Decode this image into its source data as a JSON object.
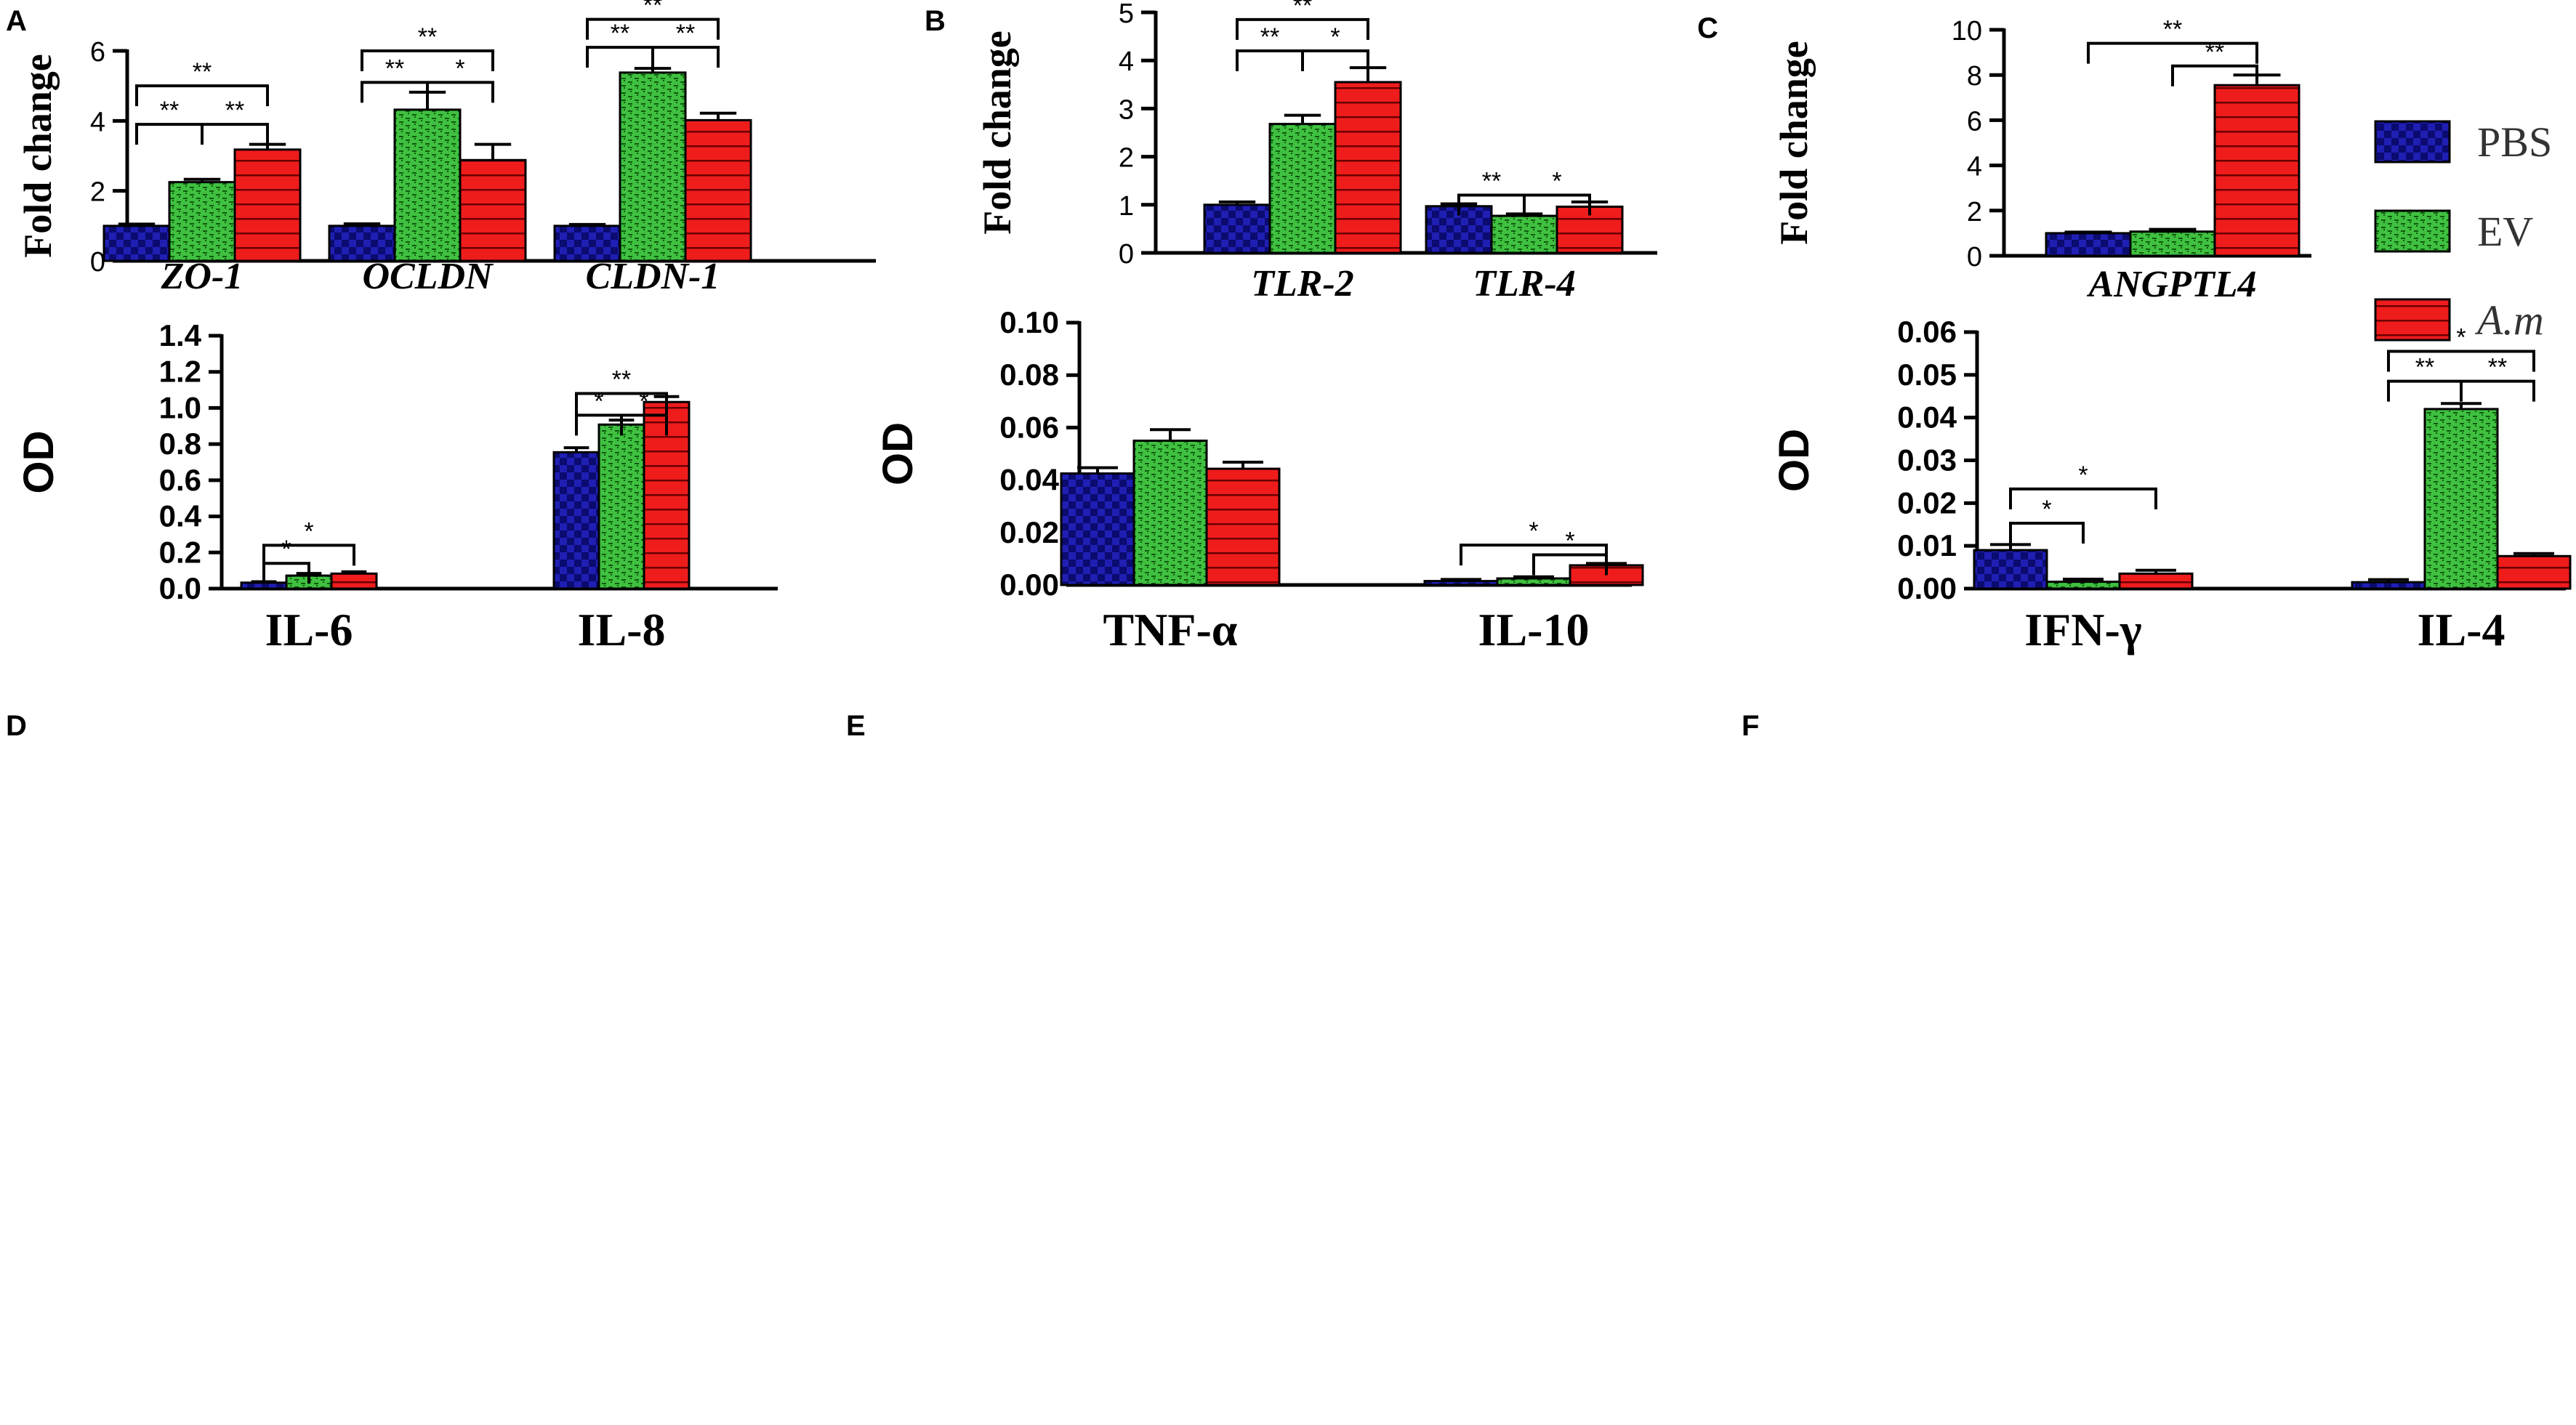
{
  "figure": {
    "legend": [
      {
        "name": "PBS",
        "italic": false
      },
      {
        "name": "EV",
        "italic": false
      },
      {
        "name": "A.m",
        "italic": true
      }
    ],
    "colors": {
      "PBS": "#1f1fb4",
      "PBS_dark": "#0b0b70",
      "EV": "#40c040",
      "EV_dark": "#0d5a0d",
      "A.m": "#ef1c1c",
      "A.m_dark": "#6a0000"
    }
  },
  "chart_data": [
    {
      "panel": "A",
      "type": "bar",
      "ylabel": "Fold change",
      "ylim": [
        0,
        6
      ],
      "yticks": [
        "0",
        "2",
        "4",
        "6"
      ],
      "ytick_values": [
        0,
        2,
        4,
        6
      ],
      "categories": [
        "ZO-1",
        "OCLDN",
        "CLDN-1"
      ],
      "category_style": "italic",
      "series": [
        {
          "name": "PBS",
          "values": [
            1.0,
            1.0,
            1.0
          ],
          "errors": [
            0.05,
            0.06,
            0.04
          ]
        },
        {
          "name": "EV",
          "values": [
            2.25,
            4.32,
            5.38
          ],
          "errors": [
            0.08,
            0.5,
            0.12
          ]
        },
        {
          "name": "A.m",
          "values": [
            3.18,
            2.88,
            4.02
          ],
          "errors": [
            0.15,
            0.45,
            0.2
          ]
        }
      ],
      "significance": [
        {
          "type": "simple",
          "cat": 0,
          "from": 0,
          "to": 2,
          "level": 5.0,
          "label": "**"
        },
        {
          "type": "split",
          "cat": 0,
          "from": 0,
          "mid": 1,
          "to": 2,
          "level": 3.9,
          "labels": [
            "**",
            "**"
          ]
        },
        {
          "type": "simple",
          "cat": 1,
          "from": 0,
          "to": 2,
          "level": 6.0,
          "label": "**"
        },
        {
          "type": "split",
          "cat": 1,
          "from": 0,
          "mid": 1,
          "to": 2,
          "level": 5.1,
          "labels": [
            "**",
            "*"
          ]
        },
        {
          "type": "simple",
          "cat": 2,
          "from": 0,
          "to": 2,
          "level": 6.9,
          "label": "**"
        },
        {
          "type": "split",
          "cat": 2,
          "from": 0,
          "mid": 1,
          "to": 2,
          "level": 6.1,
          "labels": [
            "**",
            "**"
          ]
        }
      ]
    },
    {
      "panel": "B",
      "type": "bar",
      "ylabel": "Fold change",
      "ylim": [
        0,
        5
      ],
      "yticks": [
        "0",
        "1",
        "2",
        "3",
        "4",
        "5"
      ],
      "ytick_values": [
        0,
        1,
        2,
        3,
        4,
        5
      ],
      "categories": [
        "TLR-2",
        "TLR-4"
      ],
      "category_style": "italic",
      "series": [
        {
          "name": "PBS",
          "values": [
            1.0,
            0.97
          ],
          "errors": [
            0.06,
            0.05
          ]
        },
        {
          "name": "EV",
          "values": [
            2.68,
            0.77
          ],
          "errors": [
            0.18,
            0.04
          ]
        },
        {
          "name": "A.m",
          "values": [
            3.55,
            0.96
          ],
          "errors": [
            0.3,
            0.1
          ]
        }
      ],
      "significance": [
        {
          "type": "simple",
          "cat": 0,
          "from": 0,
          "to": 2,
          "level": 4.85,
          "label": "**"
        },
        {
          "type": "split",
          "cat": 0,
          "from": 0,
          "mid": 1,
          "to": 2,
          "level": 4.2,
          "labels": [
            "**",
            "*"
          ]
        },
        {
          "type": "split",
          "cat": 1,
          "from": 0,
          "mid": 1,
          "to": 2,
          "level": 1.2,
          "labels": [
            "**",
            "*"
          ]
        }
      ]
    },
    {
      "panel": "C",
      "type": "bar",
      "ylabel": "Fold change",
      "ylim": [
        0,
        10
      ],
      "yticks": [
        "0",
        "2",
        "4",
        "6",
        "8",
        "10"
      ],
      "ytick_values": [
        0,
        2,
        4,
        6,
        8,
        10
      ],
      "categories": [
        "ANGPTL4"
      ],
      "category_style": "italic",
      "series": [
        {
          "name": "PBS",
          "values": [
            1.0
          ],
          "errors": [
            0.05
          ]
        },
        {
          "name": "EV",
          "values": [
            1.07
          ],
          "errors": [
            0.1
          ]
        },
        {
          "name": "A.m",
          "values": [
            7.55
          ],
          "errors": [
            0.45
          ]
        }
      ],
      "significance": [
        {
          "type": "simple",
          "cat": 0,
          "from": 0,
          "to": 2,
          "level": 9.4,
          "label": "**"
        },
        {
          "type": "simple",
          "cat": 0,
          "from": 1,
          "to": 2,
          "level": 8.4,
          "label": "**"
        }
      ]
    },
    {
      "panel": "D",
      "type": "bar",
      "ylabel": "OD",
      "ylim": [
        0,
        1.4
      ],
      "yticks": [
        "0.0",
        "0.2",
        "0.4",
        "0.6",
        "0.8",
        "1.0",
        "1.2",
        "1.4"
      ],
      "ytick_values": [
        0,
        0.2,
        0.4,
        0.6,
        0.8,
        1.0,
        1.2,
        1.4
      ],
      "categories": [
        "IL-6",
        "IL-8"
      ],
      "category_style": "plain",
      "series": [
        {
          "name": "PBS",
          "values": [
            0.033,
            0.755
          ],
          "errors": [
            0.005,
            0.025
          ]
        },
        {
          "name": "EV",
          "values": [
            0.072,
            0.908
          ],
          "errors": [
            0.012,
            0.025
          ]
        },
        {
          "name": "A.m",
          "values": [
            0.083,
            1.033
          ],
          "errors": [
            0.01,
            0.03
          ]
        }
      ],
      "significance": [
        {
          "type": "simple",
          "cat": 0,
          "from": 0,
          "to": 2,
          "level": 0.24,
          "label": "*"
        },
        {
          "type": "simple",
          "cat": 0,
          "from": 0,
          "to": 1,
          "level": 0.14,
          "label": "*"
        },
        {
          "type": "simple",
          "cat": 1,
          "from": 0,
          "to": 2,
          "level": 1.08,
          "label": "**"
        },
        {
          "type": "split",
          "cat": 1,
          "from": 0,
          "mid": 1,
          "to": 2,
          "level": 0.96,
          "labels": [
            "*",
            "*"
          ]
        }
      ]
    },
    {
      "panel": "E",
      "type": "bar",
      "ylabel": "OD",
      "ylim": [
        0,
        0.1
      ],
      "yticks": [
        "0.00",
        "0.02",
        "0.04",
        "0.06",
        "0.08",
        "0.10"
      ],
      "ytick_values": [
        0,
        0.02,
        0.04,
        0.06,
        0.08,
        0.1
      ],
      "categories": [
        "TNF-α",
        "IL-10"
      ],
      "category_style": "plain",
      "series": [
        {
          "name": "PBS",
          "values": [
            0.0425,
            0.0015
          ],
          "errors": [
            0.0022,
            0.0006
          ]
        },
        {
          "name": "EV",
          "values": [
            0.055,
            0.0025
          ],
          "errors": [
            0.0042,
            0.0006
          ]
        },
        {
          "name": "A.m",
          "values": [
            0.0443,
            0.0075
          ],
          "errors": [
            0.0025,
            0.0007
          ]
        }
      ],
      "significance": [
        {
          "type": "simple",
          "cat": 1,
          "from": 0,
          "to": 2,
          "level": 0.0152,
          "label": "*"
        },
        {
          "type": "simple",
          "cat": 1,
          "from": 1,
          "to": 2,
          "level": 0.0115,
          "label": "*"
        }
      ]
    },
    {
      "panel": "F",
      "type": "bar",
      "ylabel": "OD",
      "ylim": [
        0,
        0.06
      ],
      "yticks": [
        "0.00",
        "0.01",
        "0.02",
        "0.03",
        "0.04",
        "0.05",
        "0.06"
      ],
      "ytick_values": [
        0,
        0.01,
        0.02,
        0.03,
        0.04,
        0.05,
        0.06
      ],
      "categories": [
        "IFN-γ",
        "IL-4"
      ],
      "category_style": "plain",
      "series": [
        {
          "name": "PBS",
          "values": [
            0.009,
            0.0015
          ],
          "errors": [
            0.0013,
            0.0006
          ]
        },
        {
          "name": "EV",
          "values": [
            0.0016,
            0.042
          ],
          "errors": [
            0.0006,
            0.0013
          ]
        },
        {
          "name": "A.m",
          "values": [
            0.0035,
            0.0076
          ],
          "errors": [
            0.0008,
            0.0006
          ]
        }
      ],
      "significance": [
        {
          "type": "simple",
          "cat": 0,
          "from": 0,
          "to": 2,
          "level": 0.0233,
          "label": "*"
        },
        {
          "type": "simple",
          "cat": 0,
          "from": 0,
          "to": 1,
          "level": 0.0153,
          "label": "*"
        },
        {
          "type": "simple",
          "cat": 1,
          "from": 0,
          "to": 2,
          "level": 0.0555,
          "label": "*"
        },
        {
          "type": "split",
          "cat": 1,
          "from": 0,
          "mid": 1,
          "to": 2,
          "level": 0.0485,
          "labels": [
            "**",
            "**"
          ]
        }
      ]
    }
  ]
}
